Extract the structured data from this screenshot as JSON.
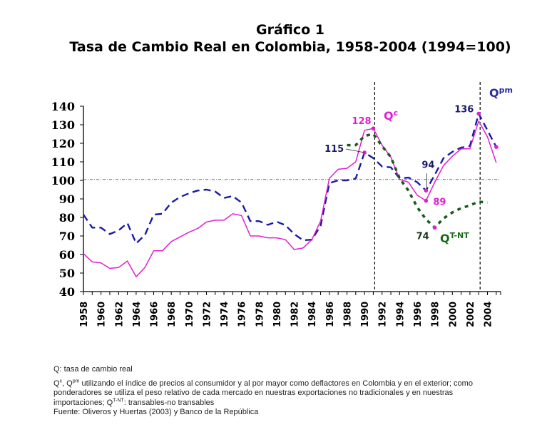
{
  "chart_data": {
    "type": "line",
    "title": "Gráfico 1",
    "subtitle": "Tasa de Cambio Real en Colombia, 1958-2004 (1994=100)",
    "xlabel": "",
    "ylabel": "",
    "ylim": [
      40,
      140
    ],
    "xlim": [
      1958,
      2005
    ],
    "yticks": [
      "40",
      "50",
      "60",
      "70",
      "80",
      "90",
      "100",
      "110",
      "120",
      "130",
      "140"
    ],
    "xticks": [
      "1958",
      "1960",
      "1962",
      "1964",
      "1966",
      "1968",
      "1970",
      "1972",
      "1974",
      "1976",
      "1978",
      "1980",
      "1982",
      "1984",
      "1986",
      "1988",
      "1990",
      "1992",
      "1994",
      "1996",
      "1998",
      "2000",
      "2002",
      "2004"
    ],
    "grid": false,
    "reference_line": {
      "y": 100.5,
      "style": "dash-dot",
      "color": "#5a7a5a"
    },
    "vertical_markers": [
      1991,
      2003
    ],
    "series": [
      {
        "name": "Qpm",
        "label_main": "Q",
        "label_sup": "pm",
        "color": "#1a1aa8",
        "style": "dashed",
        "x": [
          1958,
          1959,
          1960,
          1961,
          1962,
          1963,
          1964,
          1965,
          1966,
          1967,
          1968,
          1969,
          1970,
          1971,
          1972,
          1973,
          1974,
          1975,
          1976,
          1977,
          1978,
          1979,
          1980,
          1981,
          1982,
          1983,
          1984,
          1985,
          1986,
          1987,
          1988,
          1989,
          1990,
          1991,
          1992,
          1993,
          1994,
          1995,
          1996,
          1997,
          1998,
          1999,
          2000,
          2001,
          2002,
          2003,
          2004,
          2005
        ],
        "values": [
          81.5,
          74.5,
          74.5,
          71,
          73,
          77,
          66,
          70.5,
          81.5,
          82,
          88,
          91,
          93,
          94.5,
          95,
          94,
          90.5,
          91.5,
          88,
          78,
          78,
          76,
          77.7,
          75.8,
          71,
          67.7,
          68,
          75.4,
          98.5,
          100,
          100,
          101,
          115,
          112,
          107.5,
          107,
          101,
          101.5,
          99,
          94.5,
          103,
          112,
          115.4,
          117.7,
          118.5,
          136,
          127,
          118
        ]
      },
      {
        "name": "Qc",
        "label_main": "Q",
        "label_sup": "c",
        "color": "#e020d0",
        "style": "solid",
        "x": [
          1958,
          1959,
          1960,
          1961,
          1962,
          1963,
          1964,
          1965,
          1966,
          1967,
          1968,
          1969,
          1970,
          1971,
          1972,
          1973,
          1974,
          1975,
          1976,
          1977,
          1978,
          1979,
          1980,
          1981,
          1982,
          1983,
          1984,
          1985,
          1986,
          1987,
          1988,
          1989,
          1990,
          1991,
          1992,
          1993,
          1994,
          1995,
          1996,
          1997,
          1998,
          1999,
          2000,
          2001,
          2002,
          2003,
          2004,
          2005
        ],
        "values": [
          60.5,
          56,
          55.5,
          52.5,
          53,
          56.5,
          48,
          53,
          62,
          62,
          67,
          69.5,
          72,
          74,
          77.5,
          78.5,
          78.5,
          82,
          81,
          70,
          70,
          69,
          69,
          68,
          62.7,
          63.5,
          68,
          78,
          101,
          106,
          106.5,
          110,
          127,
          128,
          119,
          112.5,
          100.5,
          99,
          92,
          89,
          99,
          108,
          113,
          117,
          117,
          132,
          123.5,
          109.5
        ]
      },
      {
        "name": "QT-NT",
        "label_main": "Q",
        "label_sup": "T-NT",
        "color": "#1a5a1a",
        "style": "dotted",
        "x": [
          1988,
          1989,
          1990,
          1991,
          1992,
          1993,
          1994,
          1995,
          1996,
          1997,
          1998,
          1999,
          2000,
          2001,
          2002,
          2003,
          2004
        ],
        "values": [
          119,
          119,
          124,
          125,
          118.5,
          112.5,
          101,
          94.5,
          85.5,
          79,
          74.5,
          79.5,
          82.7,
          85,
          86.5,
          88.5,
          88
        ]
      }
    ],
    "annotations": [
      {
        "text": "128",
        "x": 1991,
        "y": 128,
        "color": "#e020d0",
        "target": "Qc peak"
      },
      {
        "text": "115",
        "x": 1990,
        "y": 115,
        "color": "#1a1a6e",
        "target": "Qpm 1990"
      },
      {
        "text": "94",
        "x": 1997,
        "y": 94.5,
        "color": "#1a1a6e",
        "target": "Qpm 1997"
      },
      {
        "text": "89",
        "x": 1997,
        "y": 89,
        "color": "#e020d0",
        "target": "Qc 1997"
      },
      {
        "text": "74",
        "x": 1998,
        "y": 74.5,
        "color": "#1a3a1a",
        "target": "QT-NT 1998"
      },
      {
        "text": "136",
        "x": 2003,
        "y": 136,
        "color": "#1a1a6e",
        "target": "Qpm peak"
      }
    ]
  },
  "notes": {
    "q_def": "Q: tasa de cambio real",
    "qc_sup": "c",
    "qpm_sup": "pm",
    "qc_qpm_text": " utilizando el índice de precios al consumidor y al por mayor como deflactores en Colombia y en el exterior; como ponderadores se utiliza el peso relativo de cada mercado en nuestras exportaciones no tradicionales y en nuestras importaciones; Q",
    "qtnt_sup": "T-NT",
    "qtnt_text": ": transables-no transables",
    "source": "Fuente: Oliveros y Huertas (2003) y Banco de la República"
  }
}
